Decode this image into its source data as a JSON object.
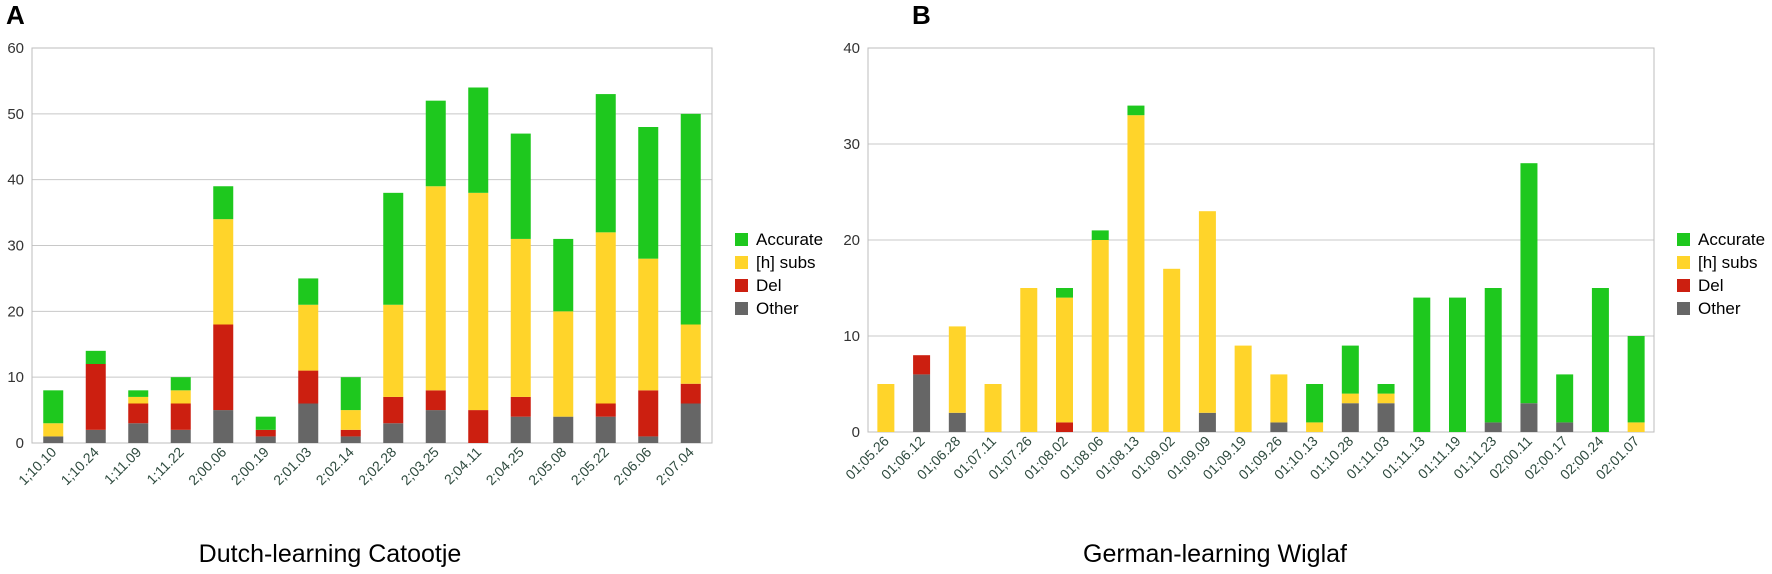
{
  "panels": {
    "a": {
      "letter": "A",
      "caption": "Dutch-learning Catootje"
    },
    "b": {
      "letter": "B",
      "caption": "German-learning Wiglaf"
    }
  },
  "colors": {
    "Accurate": "#1ec81e",
    "[h] subs": "#ffd42a",
    "Del": "#cc1f10",
    "Other": "#666666"
  },
  "chart_data": [
    {
      "type": "bar",
      "stacked": true,
      "title": "Dutch-learning Catootje",
      "categories": [
        "1;10.10",
        "1;10.24",
        "1;11.09",
        "1;11.22",
        "2;00.06",
        "2;00.19",
        "2;01.03",
        "2;02.14",
        "2;02.28",
        "2;03.25",
        "2;04.11",
        "2;04.25",
        "2;05.08",
        "2;05.22",
        "2;06.06",
        "2;07.04"
      ],
      "series": [
        {
          "name": "Other",
          "values": [
            1,
            2,
            3,
            2,
            5,
            1,
            6,
            1,
            3,
            5,
            0,
            4,
            4,
            4,
            1,
            6
          ]
        },
        {
          "name": "Del",
          "values": [
            0,
            10,
            3,
            4,
            13,
            1,
            5,
            1,
            4,
            3,
            5,
            3,
            0,
            2,
            7,
            3
          ]
        },
        {
          "name": "[h] subs",
          "values": [
            2,
            0,
            1,
            2,
            16,
            0,
            10,
            3,
            14,
            31,
            33,
            24,
            16,
            26,
            20,
            9
          ]
        },
        {
          "name": "Accurate",
          "values": [
            5,
            2,
            1,
            2,
            5,
            2,
            4,
            5,
            17,
            13,
            16,
            16,
            11,
            21,
            20,
            32
          ]
        }
      ],
      "yticks": [
        0,
        10,
        20,
        30,
        40,
        50,
        60
      ],
      "ylim": [
        0,
        60
      ],
      "legend": [
        "Accurate",
        "[h] subs",
        "Del",
        "Other"
      ]
    },
    {
      "type": "bar",
      "stacked": true,
      "title": "German-learning Wiglaf",
      "categories": [
        "01;05.26",
        "01;06.12",
        "01;06.28",
        "01;07.11",
        "01;07.26",
        "01;08.02",
        "01;08.06",
        "01;08.13",
        "01;09.02",
        "01;09.09",
        "01;09.19",
        "01;09.26",
        "01;10.13",
        "01;10.28",
        "01;11.03",
        "01;11.13",
        "01;11.19",
        "01;11.23",
        "02;00.11",
        "02;00.17",
        "02;00.24",
        "02;01.07"
      ],
      "series": [
        {
          "name": "Other",
          "values": [
            0,
            6,
            2,
            0,
            0,
            0,
            0,
            0,
            0,
            2,
            0,
            1,
            0,
            3,
            3,
            0,
            0,
            1,
            3,
            1,
            0,
            0
          ]
        },
        {
          "name": "Del",
          "values": [
            0,
            2,
            0,
            0,
            0,
            1,
            0,
            0,
            0,
            0,
            0,
            0,
            0,
            0,
            0,
            0,
            0,
            0,
            0,
            0,
            0,
            0
          ]
        },
        {
          "name": "[h] subs",
          "values": [
            5,
            0,
            9,
            5,
            15,
            13,
            20,
            33,
            17,
            21,
            9,
            5,
            1,
            1,
            1,
            0,
            0,
            0,
            0,
            0,
            0,
            1
          ]
        },
        {
          "name": "Accurate",
          "values": [
            0,
            0,
            0,
            0,
            0,
            1,
            1,
            1,
            0,
            0,
            0,
            0,
            4,
            5,
            1,
            14,
            14,
            14,
            25,
            5,
            15,
            9
          ]
        }
      ],
      "yticks": [
        0,
        10,
        20,
        30,
        40
      ],
      "ylim": [
        0,
        40
      ],
      "legend": [
        "Accurate",
        "[h] subs",
        "Del",
        "Other"
      ]
    }
  ]
}
